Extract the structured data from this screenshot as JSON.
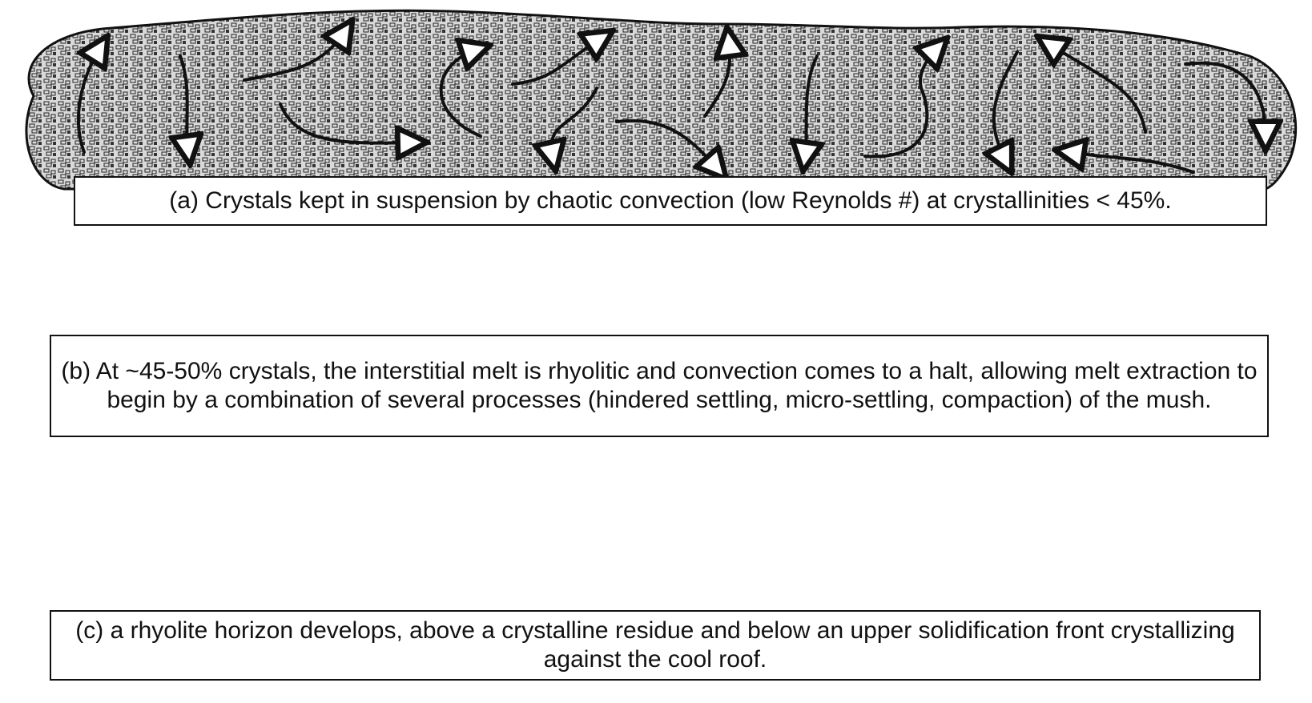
{
  "panels": [
    {
      "id": "a",
      "caption": "(a) Crystals kept in suspension by chaotic convection (low Reynolds #) at crystallinities < 45%.",
      "crystal_density": "sparse"
    },
    {
      "id": "b",
      "caption": "(b) At ~45-50% crystals, the interstitial melt is rhyolitic and convection comes to a halt, allowing melt extraction to begin by a combination of several processes (hindered settling, micro-settling, compaction) of the mush.",
      "crystal_density": "dense"
    },
    {
      "id": "c",
      "caption": "(c) a rhyolite horizon develops, above a crystalline residue and below an upper solidification front crystallizing against the cool roof.",
      "crystal_density": "dense-with-melt-horizon"
    }
  ],
  "colors": {
    "ink": "#111111",
    "background": "#ffffff",
    "sparse_fill": "#8a8a8a",
    "dense_fill": "#2b2b2b",
    "melt_horizon": "#ffffff",
    "upward_arrow": "#ffffff"
  }
}
